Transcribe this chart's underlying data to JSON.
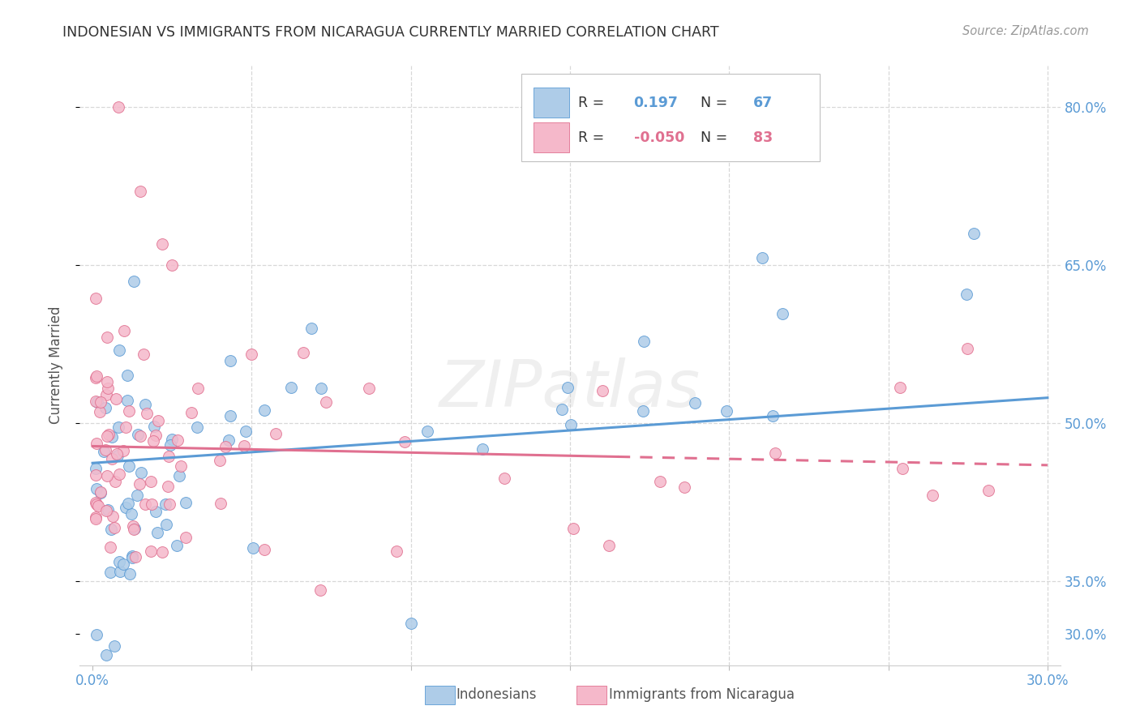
{
  "title": "INDONESIAN VS IMMIGRANTS FROM NICARAGUA CURRENTLY MARRIED CORRELATION CHART",
  "source": "Source: ZipAtlas.com",
  "ylabel": "Currently Married",
  "legend_label1": "Indonesians",
  "legend_label2": "Immigrants from Nicaragua",
  "r1": "0.197",
  "n1": "67",
  "r2": "-0.050",
  "n2": "83",
  "color_blue": "#aecce8",
  "color_pink": "#f5b8ca",
  "trendline_blue": "#5b9bd5",
  "trendline_pink": "#e07090",
  "watermark": "ZIPatlas",
  "xlim": [
    0.0,
    0.3
  ],
  "ylim": [
    0.27,
    0.84
  ],
  "yticks": [
    0.3,
    0.35,
    0.5,
    0.65,
    0.8
  ],
  "ytick_labels": [
    "30.0%",
    "35.0%",
    "50.0%",
    "65.0%",
    "80.0%"
  ],
  "xtick_show": [
    "0.0%",
    "30.0%"
  ],
  "grid_yticks": [
    0.35,
    0.5,
    0.65,
    0.8
  ],
  "grid_xticks": [
    0.05,
    0.1,
    0.15,
    0.2,
    0.25,
    0.3
  ],
  "blue_trend": [
    0.0,
    0.3,
    0.462,
    0.524
  ],
  "pink_trend_solid": [
    0.0,
    0.165,
    0.478,
    0.468
  ],
  "pink_trend_dash": [
    0.165,
    0.3,
    0.468,
    0.46
  ]
}
